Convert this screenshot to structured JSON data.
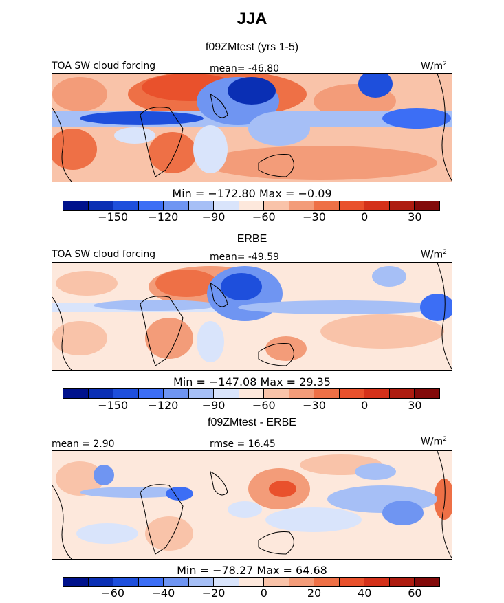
{
  "title": "JJA",
  "palette": [
    "#00128c",
    "#0a2fb4",
    "#1e4fdc",
    "#3c6ef5",
    "#6f95f2",
    "#a6bff6",
    "#d9e4fb",
    "#fde8dc",
    "#f9c3a9",
    "#f39c79",
    "#ee7046",
    "#e9512c",
    "#d4311a",
    "#ae1c10",
    "#830a0a"
  ],
  "panels": [
    {
      "subtitle": "f09ZMtest (yrs 1-5)",
      "left_label": "TOA SW cloud forcing",
      "mid_label": "mean= -46.80",
      "units_base": "W/m",
      "units_exp": "2",
      "minmax": "Min = −172.80 Max =  −0.09",
      "ticks": [
        "−150",
        "−120",
        "−90",
        "−60",
        "−30",
        "0",
        "30"
      ],
      "kind": "model"
    },
    {
      "subtitle": "ERBE",
      "left_label": "TOA SW cloud forcing",
      "mid_label": "mean= -49.59",
      "units_base": "W/m",
      "units_exp": "2",
      "minmax": "Min = −147.08 Max =  29.35",
      "ticks": [
        "−150",
        "−120",
        "−90",
        "−60",
        "−30",
        "0",
        "30"
      ],
      "kind": "obs"
    },
    {
      "subtitle": "f09ZMtest - ERBE",
      "left_label": "mean =   2.90",
      "mid_label": "rmse =  16.45",
      "units_base": "W/m",
      "units_exp": "2",
      "minmax": "Min = −78.27 Max =  64.68",
      "ticks": [
        "−60",
        "−40",
        "−20",
        "0",
        "20",
        "40",
        "60"
      ],
      "kind": "diff"
    }
  ],
  "chart_data": [
    {
      "type": "heatmap",
      "title": "f09ZMtest (yrs 1-5)",
      "variable": "TOA SW cloud forcing",
      "units": "W/m2",
      "mean": -46.8,
      "min": -172.8,
      "max": -0.09,
      "colorbar_ticks": [
        -150,
        -120,
        -90,
        -60,
        -30,
        0,
        30
      ]
    },
    {
      "type": "heatmap",
      "title": "ERBE",
      "variable": "TOA SW cloud forcing",
      "units": "W/m2",
      "mean": -49.59,
      "min": -147.08,
      "max": 29.35,
      "colorbar_ticks": [
        -150,
        -120,
        -90,
        -60,
        -30,
        0,
        30
      ]
    },
    {
      "type": "heatmap",
      "title": "f09ZMtest - ERBE",
      "units": "W/m2",
      "mean": 2.9,
      "rmse": 16.45,
      "min": -78.27,
      "max": 64.68,
      "colorbar_ticks": [
        -60,
        -40,
        -20,
        0,
        20,
        40,
        60
      ]
    }
  ]
}
